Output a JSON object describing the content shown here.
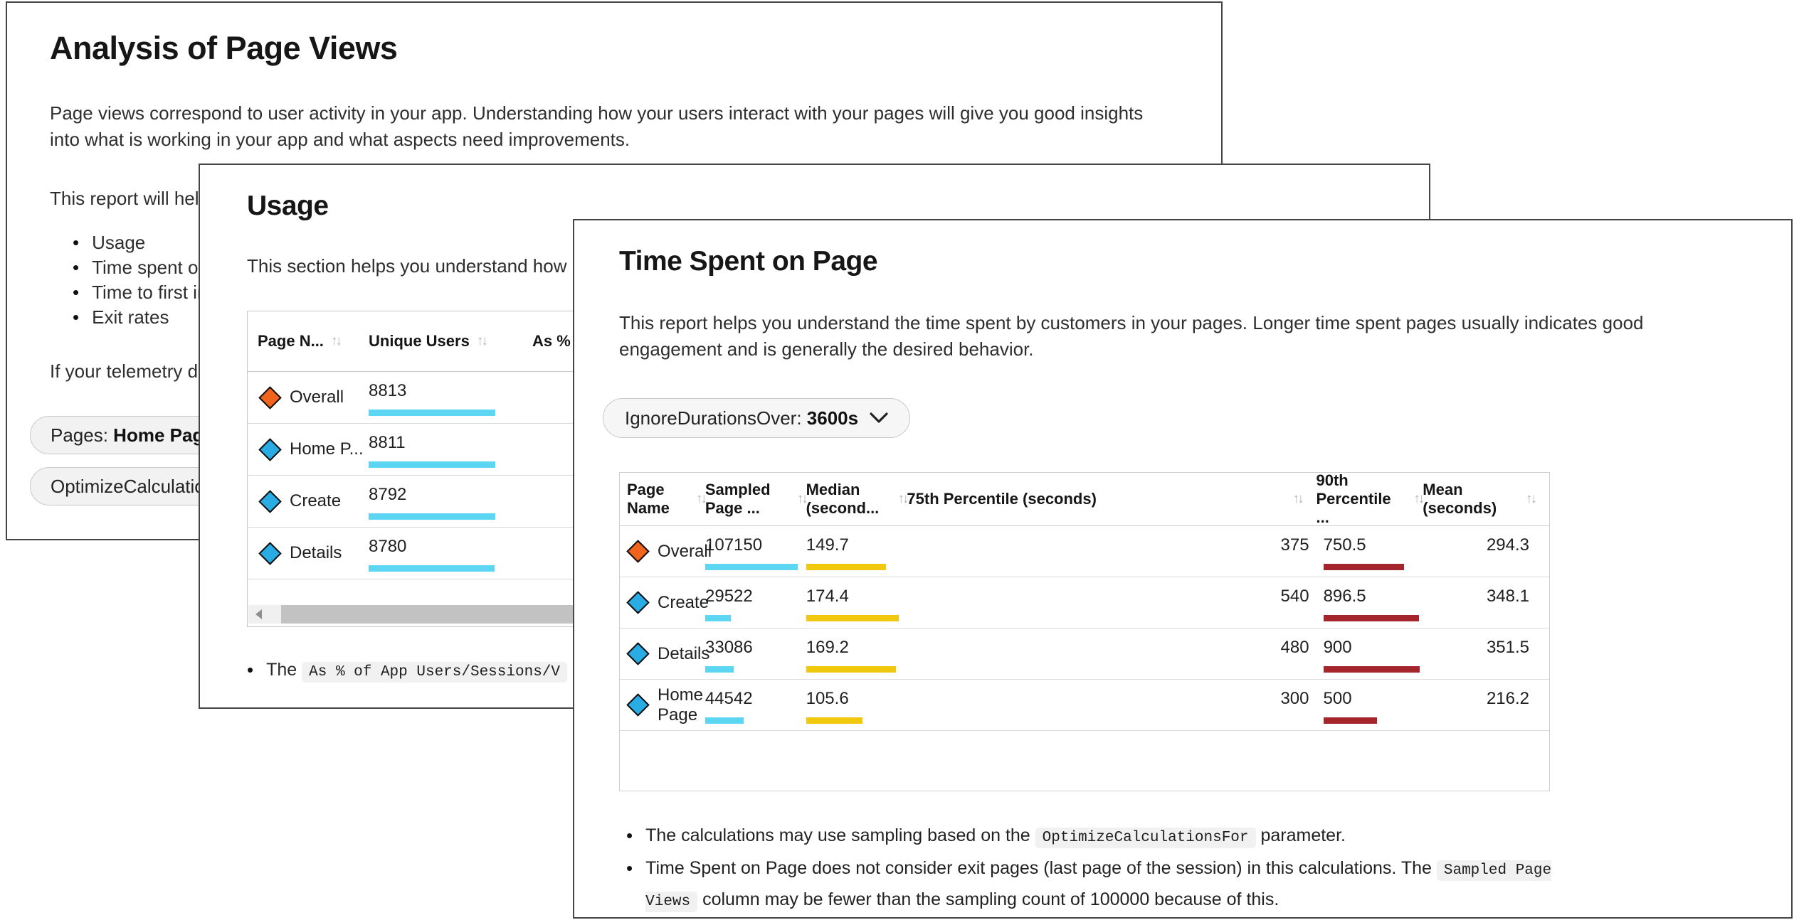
{
  "colors": {
    "bar_cyan": "#5CD6F2",
    "bar_yellow": "#F2C80F",
    "bar_red": "#A4262C",
    "marker_orange": "#F0641E",
    "marker_blue": "#29ABE3"
  },
  "icons": {
    "sort_glyph": "↑↓"
  },
  "analysis": {
    "title": "Analysis of Page Views",
    "intro": "Page views correspond to user activity in your app. Understanding how your users interact with your pages will give you good insights into what is working in your app and what aspects need improvements.",
    "report_line": "This report will help",
    "bullets": [
      "Usage",
      "Time spent on p",
      "Time to first int",
      "Exit rates"
    ],
    "telemetry_line": "If your telemetry do",
    "pills": [
      {
        "name": "pages-filter",
        "parts": [
          {
            "t": "text",
            "v": "Pages: "
          },
          {
            "t": "bold",
            "v": "Home Page, D"
          }
        ]
      },
      {
        "name": "optimize-calculations-filter",
        "parts": [
          {
            "t": "text",
            "v": "OptimizeCalculations"
          }
        ]
      }
    ]
  },
  "usage": {
    "title": "Usage",
    "description": "This section helps you understand how",
    "table": {
      "columns": [
        {
          "label": "Page N...",
          "sort": true
        },
        {
          "label": "Unique Users",
          "sort": true
        },
        {
          "label": "As % of",
          "sort": false
        }
      ],
      "rows": [
        {
          "marker": "orange",
          "name": "Overall",
          "unique_users": 8813
        },
        {
          "marker": "blue",
          "name": "Home P...",
          "unique_users": 8811
        },
        {
          "marker": "blue",
          "name": "Create",
          "unique_users": 8792
        },
        {
          "marker": "blue",
          "name": "Details",
          "unique_users": 8780
        }
      ]
    },
    "note_parts": [
      {
        "t": "text",
        "v": "The "
      },
      {
        "t": "code",
        "v": "As % of App Users/Sessions/V"
      }
    ]
  },
  "time_spent": {
    "title": "Time Spent on Page",
    "description": "This report helps you understand the time spent by customers in your pages. Longer time spent pages usually indicates good engagement and is generally the desired behavior.",
    "filter": {
      "label": "IgnoreDurationsOver: ",
      "value": "3600s"
    },
    "table": {
      "columns": [
        {
          "label": "Page Name",
          "sort": true
        },
        {
          "label": "Sampled Page ...",
          "sort": true
        },
        {
          "label": "Median (second...",
          "sort": true
        },
        {
          "label": "75th Percentile (seconds)",
          "sort": true,
          "icon_right": true
        },
        {
          "label": "90th Percentile ...",
          "sort": true
        },
        {
          "label": "Mean (seconds)",
          "sort": true,
          "icon_right": true
        }
      ],
      "rows": [
        {
          "marker": "orange",
          "name": "Overall",
          "sampled_page_views": 107150,
          "median": 149.7,
          "p75": 375,
          "p90": 750.5,
          "mean": 294.3
        },
        {
          "marker": "blue",
          "name": "Create",
          "sampled_page_views": 29522,
          "median": 174.4,
          "p75": 540,
          "p90": 896.5,
          "mean": 348.1
        },
        {
          "marker": "blue",
          "name": "Details",
          "sampled_page_views": 33086,
          "median": 169.2,
          "p75": 480,
          "p90": 900,
          "mean": 351.5
        },
        {
          "marker": "blue",
          "name": "Home Page",
          "sampled_page_views": 44542,
          "median": 105.6,
          "p75": 300,
          "p90": 500,
          "mean": 216.2
        }
      ]
    },
    "notes": [
      {
        "parts": [
          {
            "t": "text",
            "v": "The calculations may use sampling based on the "
          },
          {
            "t": "code",
            "v": "OptimizeCalculationsFor"
          },
          {
            "t": "text",
            "v": " parameter."
          }
        ]
      },
      {
        "parts": [
          {
            "t": "text",
            "v": "Time Spent on Page does not consider exit pages (last page of the session) in this calculations. The "
          },
          {
            "t": "code",
            "v": "Sampled Page Views"
          },
          {
            "t": "text",
            "v": " column may be fewer than the sampling count of 100000 because of this."
          }
        ]
      }
    ]
  }
}
